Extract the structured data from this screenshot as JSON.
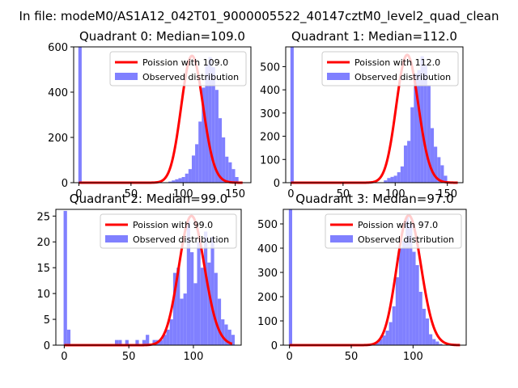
{
  "suptitle": "In file: modeM0/AS1A12_042T01_9000005522_40147cztM0_level2_quad_clean",
  "colors": {
    "fit": "#ff0000",
    "hist": "#8080ff"
  },
  "chart_data": [
    {
      "type": "bar",
      "title": "Quadrant 0: Median=109.0",
      "xlim": [
        -5,
        165
      ],
      "ylim": [
        0,
        600
      ],
      "xticks": [
        0,
        50,
        100,
        150
      ],
      "yticks": [
        0,
        200,
        400,
        600
      ],
      "legend": {
        "position": "top-right",
        "entries": [
          "Poission with 109.0",
          "Observed distribution"
        ]
      },
      "hist": {
        "name": "Observed distribution",
        "bin_width": 3.2,
        "edges_start": -0.5,
        "values": [
          600,
          0,
          0,
          0,
          0,
          0,
          0,
          0,
          0,
          0,
          0,
          0,
          0,
          0,
          0,
          0,
          0,
          0,
          0,
          0,
          0,
          0,
          0,
          0,
          0,
          0,
          0,
          5,
          10,
          15,
          20,
          25,
          40,
          60,
          120,
          170,
          270,
          420,
          520,
          555,
          510,
          410,
          285,
          200,
          115,
          90,
          60,
          25
        ]
      },
      "poisson": {
        "name": "Poission with 109.0",
        "mean": 109.0,
        "scale": 560,
        "x_range": [
          0,
          157
        ]
      }
    },
    {
      "type": "bar",
      "title": "Quadrant 1: Median=112.0",
      "xlim": [
        -5,
        165
      ],
      "ylim": [
        0,
        585
      ],
      "xticks": [
        0,
        50,
        100,
        150
      ],
      "yticks": [
        0,
        100,
        200,
        300,
        400,
        500
      ],
      "legend": {
        "position": "top-right",
        "entries": [
          "Poission with 112.0",
          "Observed distribution"
        ]
      },
      "hist": {
        "name": "Observed distribution",
        "bin_width": 3.2,
        "edges_start": -0.5,
        "values": [
          585,
          0,
          0,
          0,
          0,
          0,
          0,
          0,
          0,
          0,
          0,
          0,
          0,
          0,
          0,
          0,
          0,
          0,
          0,
          0,
          0,
          0,
          0,
          0,
          0,
          0,
          0,
          0,
          10,
          20,
          25,
          30,
          45,
          70,
          160,
          180,
          325,
          470,
          485,
          545,
          505,
          420,
          235,
          155,
          110,
          75,
          30,
          0
        ]
      },
      "poisson": {
        "name": "Poission with 112.0",
        "mean": 112.0,
        "scale": 550,
        "x_range": [
          0,
          160
        ]
      }
    },
    {
      "type": "bar",
      "title": "Quadrant 2: Median=99.0",
      "xlim": [
        -6.5,
        137
      ],
      "ylim": [
        0,
        26.3
      ],
      "xticks": [
        0,
        50,
        100
      ],
      "yticks": [
        0,
        5,
        10,
        15,
        20,
        25
      ],
      "legend": {
        "position": "top-right",
        "entries": [
          "Poission with 99.0",
          "Observed distribution"
        ]
      },
      "hist": {
        "name": "Observed distribution",
        "bin_width": 2.65,
        "edges_start": -0.5,
        "values": [
          26,
          3,
          0,
          0,
          0,
          0,
          0,
          0,
          0,
          0,
          0,
          0,
          0,
          0,
          0,
          1,
          1,
          0,
          1,
          0,
          0,
          1,
          0,
          1,
          2,
          0,
          1,
          1,
          1,
          2,
          3,
          5,
          14,
          15,
          9,
          10,
          24,
          18,
          12,
          20,
          15,
          22,
          16,
          21,
          14,
          9,
          5,
          4,
          3,
          2
        ]
      },
      "poisson": {
        "name": "Poission with 99.0",
        "mean": 99.0,
        "scale": 25,
        "x_range": [
          0,
          130
        ]
      }
    },
    {
      "type": "bar",
      "title": "Quadrant 3: Median=97.0",
      "xlim": [
        -5,
        143
      ],
      "ylim": [
        0,
        560
      ],
      "xticks": [
        0,
        50,
        100
      ],
      "yticks": [
        0,
        100,
        200,
        300,
        400,
        500
      ],
      "legend": {
        "position": "top-right",
        "entries": [
          "Poission with 97.0",
          "Observed distribution"
        ]
      },
      "hist": {
        "name": "Observed distribution",
        "bin_width": 2.7,
        "edges_start": -0.5,
        "values": [
          560,
          0,
          0,
          0,
          0,
          0,
          0,
          0,
          0,
          0,
          0,
          0,
          0,
          0,
          0,
          0,
          0,
          0,
          0,
          0,
          0,
          0,
          0,
          0,
          0,
          0,
          10,
          25,
          40,
          60,
          95,
          160,
          280,
          400,
          430,
          530,
          500,
          385,
          330,
          220,
          150,
          110,
          45,
          25,
          15,
          5
        ]
      },
      "poisson": {
        "name": "Poission with 97.0",
        "mean": 97.0,
        "scale": 535,
        "x_range": [
          0,
          138
        ]
      }
    }
  ]
}
